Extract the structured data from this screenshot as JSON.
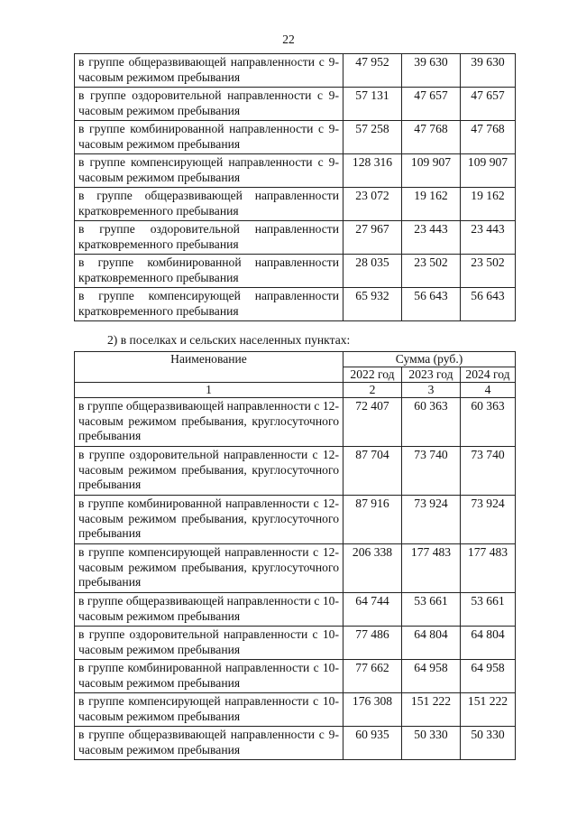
{
  "page_number": "22",
  "table1": {
    "rows": [
      {
        "name": "в группе общеразвивающей направленности с 9-часовым режимом пребывания",
        "y2022": "47 952",
        "y2023": "39 630",
        "y2024": "39 630"
      },
      {
        "name": "в группе оздоровительной направленности с 9-часовым режимом пребывания",
        "y2022": "57 131",
        "y2023": "47 657",
        "y2024": "47 657"
      },
      {
        "name": "в группе комбинированной направленности с 9-часовым режимом пребывания",
        "y2022": "57 258",
        "y2023": "47 768",
        "y2024": "47 768"
      },
      {
        "name": "в группе компенсирующей направленности с 9-часовым режимом пребывания",
        "y2022": "128 316",
        "y2023": "109 907",
        "y2024": "109 907"
      },
      {
        "name": "в группе общеразвивающей направленности кратковременного пребывания",
        "y2022": "23 072",
        "y2023": "19 162",
        "y2024": "19 162"
      },
      {
        "name": "в группе оздоровительной направленности кратковременного пребывания",
        "y2022": "27 967",
        "y2023": "23 443",
        "y2024": "23 443"
      },
      {
        "name": "в группе комбинированной направленности кратковременного пребывания",
        "y2022": "28 035",
        "y2023": "23 502",
        "y2024": "23 502"
      },
      {
        "name": "в группе компенсирующей направленности кратковременного пребывания",
        "y2022": "65 932",
        "y2023": "56 643",
        "y2024": "56 643"
      }
    ]
  },
  "caption": "2) в поселках и сельских населенных пунктах:",
  "table2": {
    "header": {
      "name": "Наименование",
      "sum": "Сумма (руб.)",
      "years": [
        "2022 год",
        "2023 год",
        "2024 год"
      ],
      "col_numbers": [
        "1",
        "2",
        "3",
        "4"
      ]
    },
    "rows": [
      {
        "name": "в группе общеразвивающей направленности с 12-часовым режимом пребывания, круглосуточного пребывания",
        "y2022": "72 407",
        "y2023": "60 363",
        "y2024": "60 363"
      },
      {
        "name": "в группе оздоровительной направленности с 12-часовым режимом пребывания, круглосуточного пребывания",
        "y2022": "87 704",
        "y2023": "73 740",
        "y2024": "73 740"
      },
      {
        "name": "в группе комбинированной направленности с 12-часовым режимом пребывания, круглосуточного пребывания",
        "y2022": "87 916",
        "y2023": "73 924",
        "y2024": "73 924"
      },
      {
        "name": "в группе компенсирующей направленности с 12-часовым режимом пребывания, круглосуточного пребывания",
        "y2022": "206 338",
        "y2023": "177 483",
        "y2024": "177 483"
      },
      {
        "name": "в группе общеразвивающей направленности с 10-часовым режимом пребывания",
        "y2022": "64 744",
        "y2023": "53 661",
        "y2024": "53 661"
      },
      {
        "name": "в группе оздоровительной направленности с 10-часовым режимом пребывания",
        "y2022": "77 486",
        "y2023": "64 804",
        "y2024": "64 804"
      },
      {
        "name": "в группе комбинированной направленности с 10-часовым режимом пребывания",
        "y2022": "77 662",
        "y2023": "64 958",
        "y2024": "64 958"
      },
      {
        "name": "в группе компенсирующей направленности с 10-часовым режимом пребывания",
        "y2022": "176 308",
        "y2023": "151 222",
        "y2024": "151 222"
      },
      {
        "name": "в группе общеразвивающей направленности с 9-часовым режимом пребывания",
        "y2022": "60 935",
        "y2023": "50 330",
        "y2024": "50 330"
      }
    ]
  }
}
